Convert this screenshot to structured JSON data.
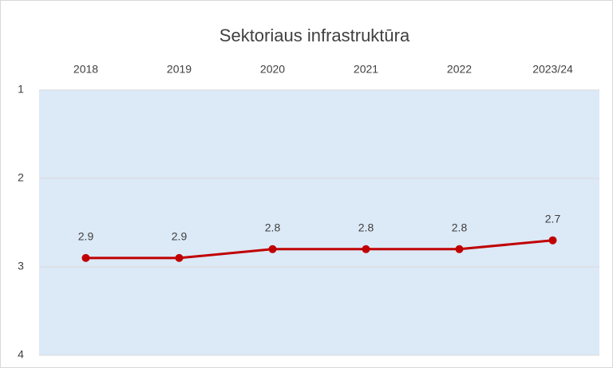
{
  "chart_data": {
    "type": "line",
    "title": "Sektoriaus infrastruktūra",
    "categories": [
      "2018",
      "2019",
      "2020",
      "2021",
      "2022",
      "2023/24"
    ],
    "series": [
      {
        "name": "Sektoriaus infrastruktūra",
        "color": "#c00000",
        "values": [
          2.9,
          2.9,
          2.8,
          2.8,
          2.8,
          2.7
        ]
      }
    ],
    "ylim": [
      1,
      4
    ],
    "yticks": [
      1,
      2,
      3,
      4
    ],
    "y_inverted": true,
    "x_axis_position": "top",
    "grid": true,
    "plot_background": "#dce9f6",
    "data_labels": true
  }
}
